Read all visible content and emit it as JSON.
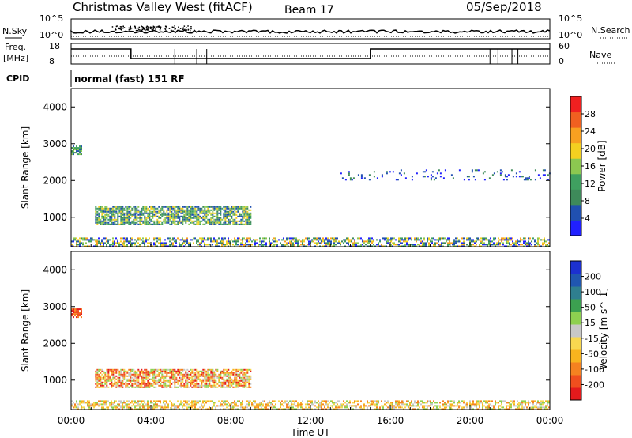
{
  "header": {
    "title": "Christmas Valley West (fitACF)",
    "beam": "Beam 17",
    "date": "05/Sep/2018"
  },
  "top_panels": {
    "nsky_label": "N.Sky",
    "nsky_ticks": [
      "10^5",
      "10^0"
    ],
    "nsearch_label": "N.Search",
    "nsearch_ticks": [
      "10^5",
      "10^0"
    ],
    "freq_label_line1": "Freq.",
    "freq_label_line2": "[MHz]",
    "freq_ticks": [
      "18",
      "8"
    ],
    "nave_label": "Nave",
    "nave_ticks": [
      "60",
      "0"
    ],
    "cpid_label": "CPID",
    "cpid_value": "normal (fast) 151 RF"
  },
  "colors": {
    "power_scale": [
      "#2020ff",
      "#2050b0",
      "#3e8a5a",
      "#3fa060",
      "#8cc850",
      "#f4d020",
      "#f8a020",
      "#f06020",
      "#f02020"
    ],
    "velocity_scale": [
      "#e41a1c",
      "#f04e1e",
      "#f58220",
      "#f8b41e",
      "#f8d850",
      "#c8c8c8",
      "#8ed050",
      "#3ca050",
      "#2f7f8f",
      "#2056b0",
      "#1c30d0"
    ]
  },
  "chart_data": [
    {
      "type": "heatmap",
      "name": "power",
      "ylabel": "Slant Range [km]",
      "xlabel": "Time UT",
      "xticks": [
        "00:00",
        "04:00",
        "08:00",
        "12:00",
        "16:00",
        "20:00",
        "00:00"
      ],
      "yticks": [
        1000,
        2000,
        3000,
        4000
      ],
      "ylim": [
        200,
        4500
      ],
      "xlim_hours": [
        0,
        24
      ],
      "colorbar_label": "Power [dB]",
      "colorbar_ticks": [
        4,
        8,
        12,
        16,
        20,
        24,
        28
      ],
      "features": [
        {
          "region": "ionospheric scatter",
          "t_start": 1.2,
          "t_end": 9.0,
          "range_km": [
            800,
            1300
          ],
          "power_db": [
            8,
            20
          ]
        },
        {
          "region": "far range echo",
          "t_start": 0.0,
          "t_end": 0.5,
          "range_km": [
            2700,
            2950
          ],
          "power_db": [
            10,
            16
          ]
        },
        {
          "region": "ground scatter band",
          "t_start": 0.0,
          "t_end": 24.0,
          "range_km": [
            200,
            450
          ],
          "power_db": [
            4,
            24
          ]
        },
        {
          "region": "sparse 2000-2300 km",
          "t_start": 13.5,
          "t_end": 24.0,
          "range_km": [
            2000,
            2300
          ],
          "power_db": [
            6,
            10
          ]
        }
      ]
    },
    {
      "type": "heatmap",
      "name": "velocity",
      "ylabel": "Slant Range [km]",
      "xlabel": "Time UT",
      "xticks": [
        "00:00",
        "04:00",
        "08:00",
        "12:00",
        "16:00",
        "20:00",
        "00:00"
      ],
      "yticks": [
        1000,
        2000,
        3000,
        4000
      ],
      "ylim": [
        200,
        4500
      ],
      "xlim_hours": [
        0,
        24
      ],
      "colorbar_label": "Velocity [m s^-1]",
      "colorbar_ticks": [
        -200,
        -100,
        -50,
        -15,
        15,
        50,
        100,
        200
      ],
      "features": [
        {
          "region": "ionospheric scatter",
          "t_start": 1.2,
          "t_end": 9.0,
          "range_km": [
            800,
            1300
          ],
          "velocity": [
            -200,
            50
          ]
        },
        {
          "region": "far range echo",
          "t_start": 0.0,
          "t_end": 0.5,
          "range_km": [
            2700,
            2950
          ],
          "velocity": [
            -200,
            -100
          ]
        },
        {
          "region": "ground scatter band",
          "t_start": 0.0,
          "t_end": 24.0,
          "range_km": [
            200,
            450
          ],
          "velocity": [
            -50,
            50
          ]
        }
      ]
    }
  ]
}
